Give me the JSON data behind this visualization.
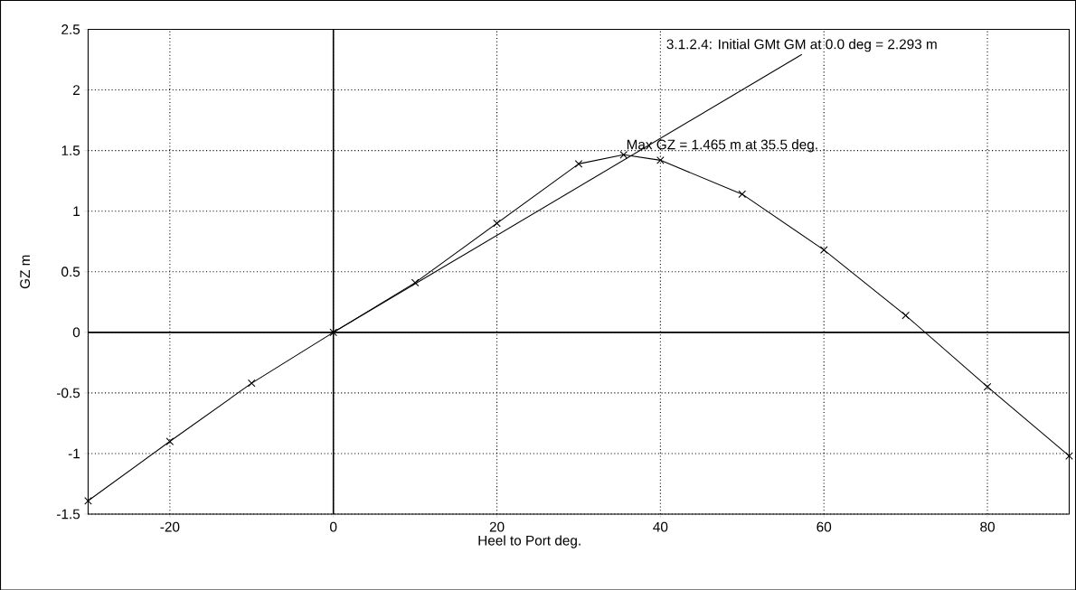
{
  "chart_data": {
    "type": "line",
    "xlabel": "Heel to Port  deg.",
    "ylabel": "GZ  m",
    "x": [
      -30,
      -20,
      -10,
      0,
      10,
      20,
      30,
      35.5,
      40,
      50,
      60,
      70,
      80,
      90
    ],
    "series": [
      {
        "color": "#000000",
        "marker": "cross",
        "values": [
          -1.39,
          -0.9,
          -0.42,
          0,
          0.41,
          0.9,
          1.39,
          1.465,
          1.42,
          1.14,
          0.68,
          0.14,
          -0.45,
          -1.02
        ]
      },
      {
        "color": "#000000",
        "marker": "none",
        "x": [
          0,
          57.3
        ],
        "values": [
          0,
          2.293
        ]
      }
    ],
    "annotations": [
      {
        "text": "3.1.2.4: Initial GMt GM at 0.0 deg = 2.293 m",
        "x": 57.3,
        "y": 2.293
      },
      {
        "text": "Max GZ = 1.465 m at 35.5 deg.",
        "x": 35.5,
        "y": 1.465
      }
    ],
    "xlim": [
      -30,
      90
    ],
    "ylim": [
      -1.5,
      2.5
    ],
    "xticks": [
      -20,
      0,
      20,
      40,
      60,
      80
    ],
    "yticks": [
      -1.5,
      -1,
      -0.5,
      0,
      0.5,
      1,
      1.5,
      2,
      2.5
    ],
    "grid": true,
    "line_style": "solid"
  }
}
